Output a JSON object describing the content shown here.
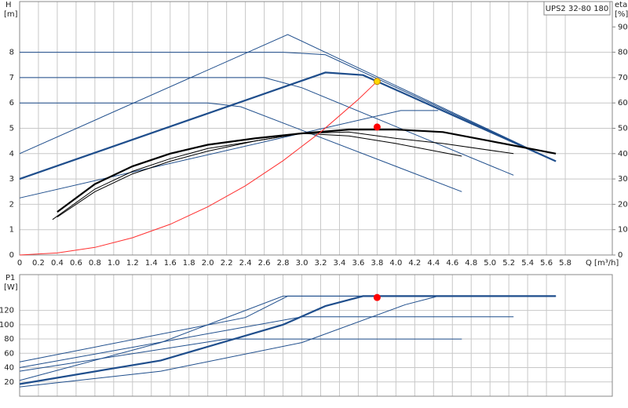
{
  "chart_data": [
    {
      "type": "line",
      "title": "UPS2 32-80 180",
      "y_label": "H",
      "y_unit": "[m]",
      "y2_label": "eta",
      "y2_unit": "[%]",
      "x_label": "Q [m³/h]",
      "xlim": [
        0,
        6.3
      ],
      "ylim": [
        0,
        10
      ],
      "y2lim": [
        0,
        100
      ],
      "grid": true,
      "xticks": [
        0,
        0.2,
        0.4,
        0.6,
        0.8,
        {
          "value": 1,
          "label": "1.0"
        },
        1.2,
        1.4,
        1.6,
        1.8,
        {
          "value": 2,
          "label": "2.0"
        },
        2.2,
        2.4,
        2.6,
        2.8,
        {
          "value": 3,
          "label": "3.0"
        },
        3.2,
        3.4,
        3.6,
        3.8,
        {
          "value": 4,
          "label": "4.0"
        },
        4.2,
        4.4,
        4.6,
        4.8,
        {
          "value": 5,
          "label": "5.0"
        },
        5.2,
        5.4,
        5.6,
        5.8
      ],
      "yticks": [
        0,
        1,
        2,
        3,
        4,
        5,
        6,
        7,
        8
      ],
      "y2ticks": [
        0,
        10,
        20,
        30,
        40,
        50,
        60,
        70,
        80,
        90
      ],
      "series": [
        {
          "color": "#1f4e8c",
          "x": [
            0,
            2.8,
            3.25,
            5.7
          ],
          "values": [
            8,
            8,
            7.9,
            3.7
          ]
        },
        {
          "color": "#1f4e8c",
          "x": [
            0,
            2.6,
            3.0,
            5.25
          ],
          "values": [
            7,
            7,
            6.6,
            3.15
          ]
        },
        {
          "color": "#1f4e8c",
          "x": [
            0,
            2.0,
            2.35,
            4.7
          ],
          "values": [
            6,
            6,
            5.85,
            2.5
          ]
        },
        {
          "color": "#1f4e8c",
          "x": [
            0,
            2.85,
            5.7
          ],
          "values": [
            4,
            8.7,
            3.7
          ]
        },
        {
          "color": "#1f4e8c",
          "thick": true,
          "x": [
            0,
            3.25,
            3.65,
            5.7
          ],
          "values": [
            3,
            7.2,
            7.1,
            3.7
          ]
        },
        {
          "color": "#1f4e8c",
          "x": [
            0,
            4.05,
            4.45
          ],
          "values": [
            2.25,
            5.7,
            5.7
          ]
        },
        {
          "color": "#000000",
          "thick": true,
          "axis": "y2",
          "x": [
            0.4,
            0.8,
            1.2,
            1.6,
            2.0,
            2.5,
            3.0,
            3.5,
            4.0,
            4.5,
            5.0,
            5.7
          ],
          "values": [
            17,
            28,
            35,
            40,
            43.5,
            46,
            48,
            49.5,
            49.5,
            48.5,
            45,
            40
          ]
        },
        {
          "color": "#000000",
          "axis": "y2",
          "x": [
            0.35,
            0.8,
            1.2,
            1.6,
            2.0,
            2.5,
            3.0,
            3.5,
            4.0,
            4.5,
            5.25
          ],
          "values": [
            14,
            26,
            33,
            38,
            42,
            45,
            48,
            48.5,
            46,
            44,
            40
          ]
        },
        {
          "color": "#000000",
          "axis": "y2",
          "x": [
            0.4,
            0.8,
            1.2,
            1.6,
            2.0,
            2.5,
            3.0,
            3.5,
            4.0,
            4.7
          ],
          "values": [
            15,
            25,
            32,
            37,
            41,
            45,
            48,
            47,
            44,
            39
          ]
        },
        {
          "color": "#ff3030",
          "x": [
            0,
            0.4,
            0.8,
            1.2,
            1.6,
            2.0,
            2.4,
            2.8,
            3.2,
            3.6,
            3.8
          ],
          "values": [
            0,
            0.08,
            0.3,
            0.68,
            1.21,
            1.9,
            2.73,
            3.72,
            4.85,
            6.14,
            6.85
          ]
        },
        {
          "color": "#ffd700",
          "mode": "point",
          "x": [
            3.8
          ],
          "values": [
            6.85
          ]
        },
        {
          "color": "#ff0000",
          "mode": "point",
          "axis": "y2",
          "x": [
            3.8
          ],
          "values": [
            50.5
          ]
        }
      ]
    },
    {
      "type": "line",
      "y_label": "P1",
      "y_unit": "[W]",
      "xlim": [
        0,
        6.3
      ],
      "ylim": [
        0,
        170
      ],
      "grid": true,
      "xticks": [
        0,
        0.2,
        0.4,
        0.6,
        0.8,
        1,
        1.2,
        1.4,
        1.6,
        1.8,
        2,
        2.2,
        2.4,
        2.6,
        2.8,
        3,
        3.2,
        3.4,
        3.6,
        3.8,
        4,
        4.2,
        4.4,
        4.6,
        4.8,
        5,
        5.2,
        5.4,
        5.6,
        5.8
      ],
      "yticks": [
        20,
        40,
        60,
        80,
        100,
        120
      ],
      "series": [
        {
          "color": "#1f4e8c",
          "thick": true,
          "x": [
            0,
            1.5,
            2.8,
            3.25,
            3.65,
            5.7
          ],
          "values": [
            17,
            50,
            100,
            126,
            140,
            140
          ]
        },
        {
          "color": "#1f4e8c",
          "x": [
            0,
            2.4,
            2.85,
            5.7
          ],
          "values": [
            48,
            110,
            140,
            140
          ]
        },
        {
          "color": "#1f4e8c",
          "x": [
            0,
            3.0,
            5.25
          ],
          "values": [
            40,
            111,
            111
          ]
        },
        {
          "color": "#1f4e8c",
          "x": [
            0,
            2.2,
            4.7
          ],
          "values": [
            35,
            80,
            80
          ]
        },
        {
          "color": "#1f4e8c",
          "x": [
            0,
            1.5,
            2.8,
            5.7
          ],
          "values": [
            22,
            75,
            140,
            140
          ]
        },
        {
          "color": "#1f4e8c",
          "x": [
            0,
            1.5,
            3.0,
            4.1,
            4.45,
            5.7
          ],
          "values": [
            13,
            35,
            75,
            128,
            140,
            140
          ]
        },
        {
          "color": "#ff0000",
          "mode": "point",
          "x": [
            3.8
          ],
          "values": [
            138
          ]
        }
      ]
    }
  ]
}
